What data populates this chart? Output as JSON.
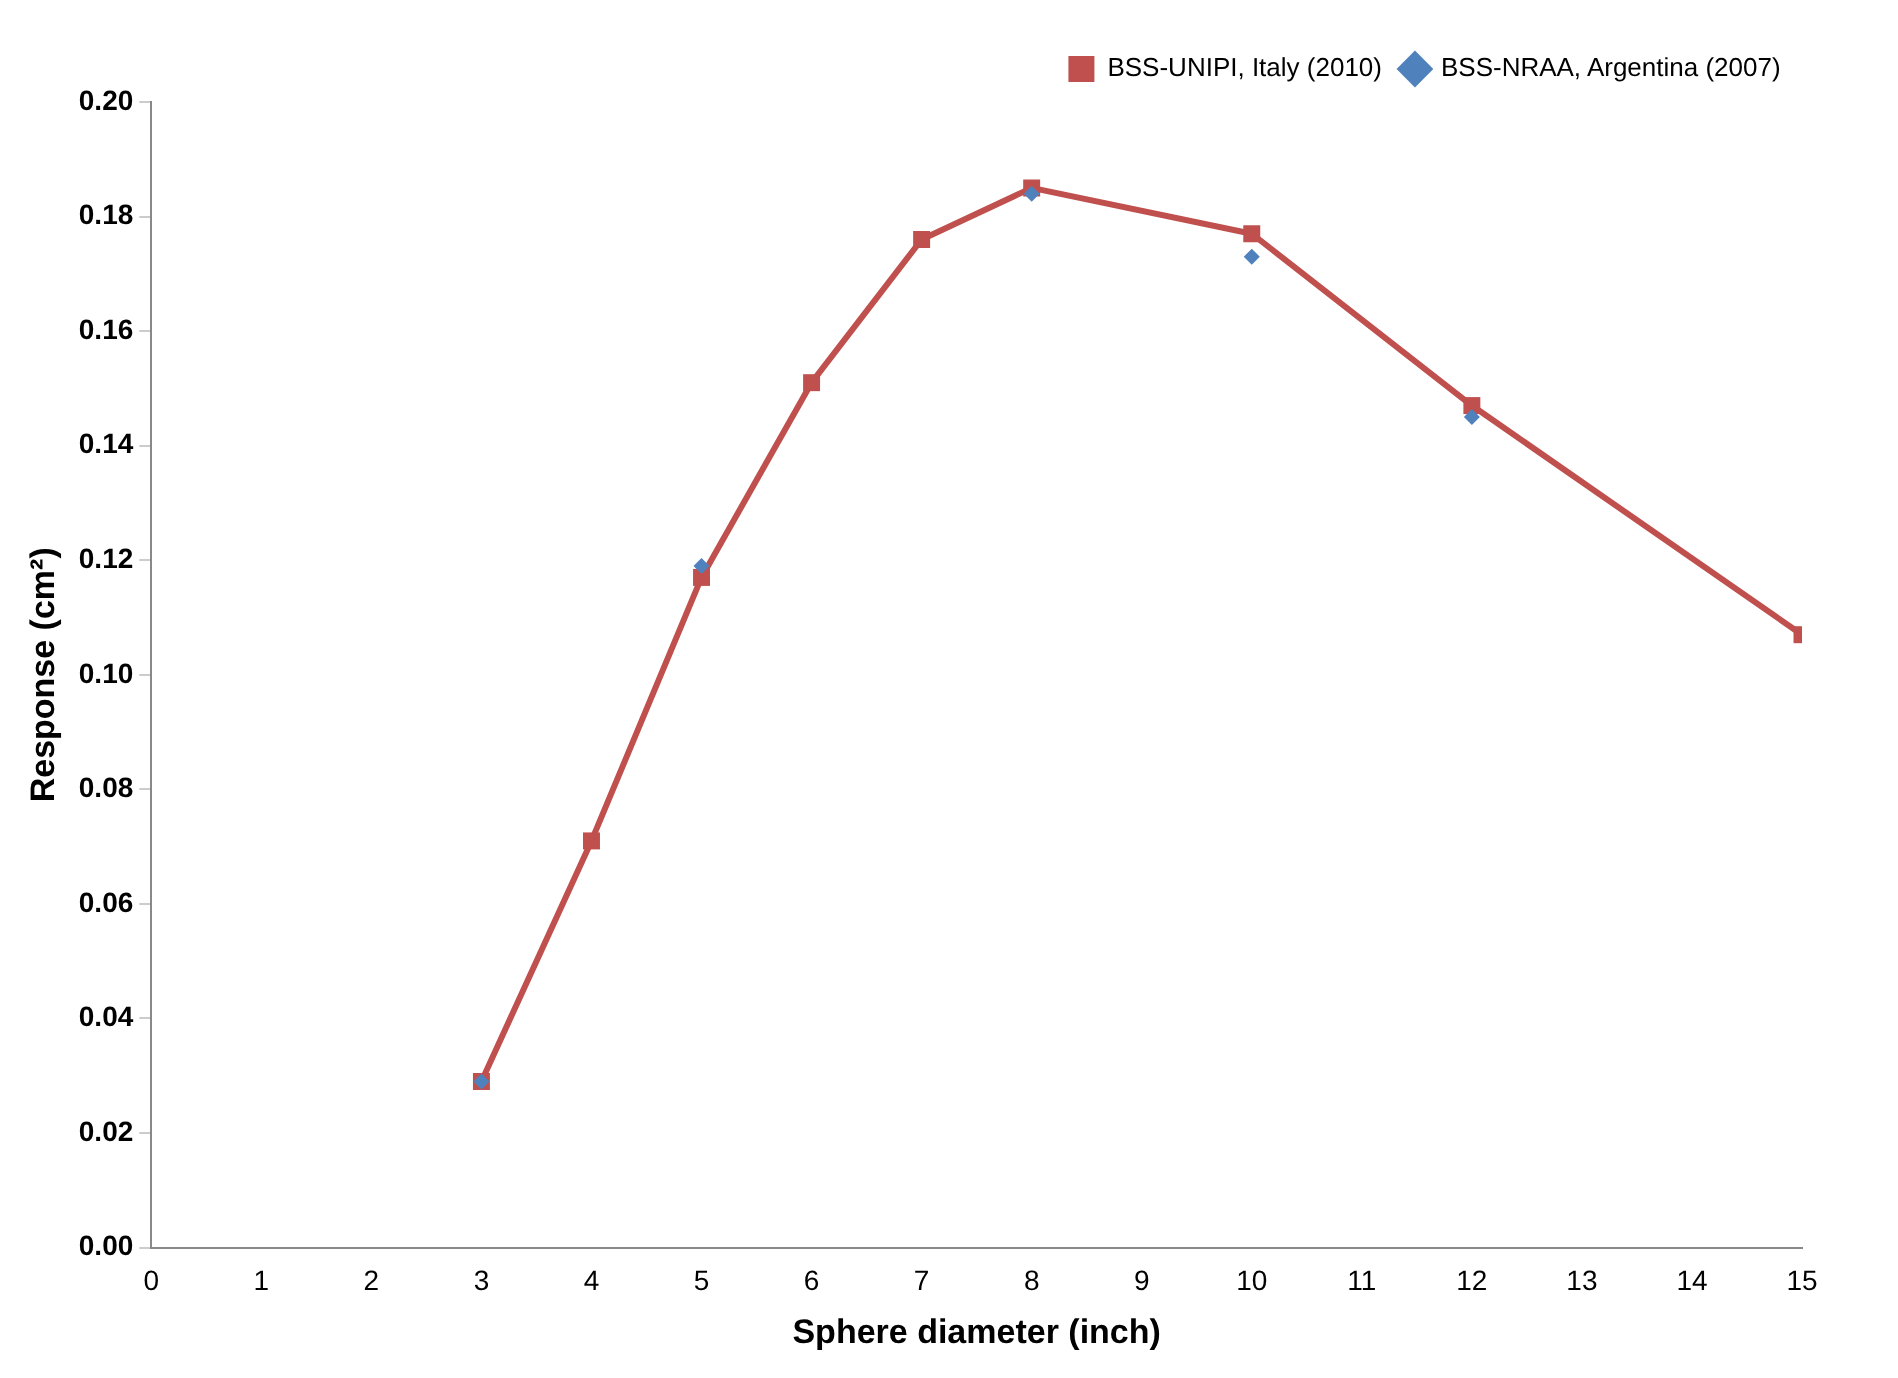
{
  "chart_data": {
    "type": "line",
    "xlabel": "Sphere diameter (inch)",
    "ylabel": "Response (cm²)",
    "xlim": [
      0,
      15
    ],
    "xticks": [
      0,
      1,
      2,
      3,
      4,
      5,
      6,
      7,
      8,
      9,
      10,
      11,
      12,
      13,
      14,
      15
    ],
    "ylim": [
      0,
      0.2
    ],
    "yticks": [
      {
        "value": 0,
        "label": "0.00"
      },
      {
        "value": 0.02,
        "label": "0.02"
      },
      {
        "value": 0.04,
        "label": "0.04"
      },
      {
        "value": 0.06,
        "label": "0.06"
      },
      {
        "value": 0.08,
        "label": "0.08"
      },
      {
        "value": 0.1,
        "label": "0.10"
      },
      {
        "value": 0.12,
        "label": "0.12"
      },
      {
        "value": 0.14,
        "label": "0.14"
      },
      {
        "value": 0.16,
        "label": "0.16"
      },
      {
        "value": 0.18,
        "label": "0.18"
      },
      {
        "value": 0.2,
        "label": "0.20"
      }
    ],
    "grid": false,
    "legend": "top right",
    "series": [
      {
        "name": "BSS-UNIPI, Italy (2010)",
        "color": "#c0504d",
        "marker": "square",
        "x": [
          3,
          4,
          5,
          6,
          7,
          8,
          10,
          12,
          15
        ],
        "values": [
          0.029,
          0.071,
          0.117,
          0.151,
          0.176,
          0.185,
          0.177,
          0.147,
          0.107
        ]
      },
      {
        "name": "BSS-NRAA, Argentina (2007)",
        "type": "scatter",
        "color": "#4f81bd",
        "marker": "diamond",
        "x": [
          3,
          5,
          8,
          10,
          12
        ],
        "values": [
          0.029,
          0.119,
          0.184,
          0.173,
          0.145
        ]
      }
    ]
  }
}
